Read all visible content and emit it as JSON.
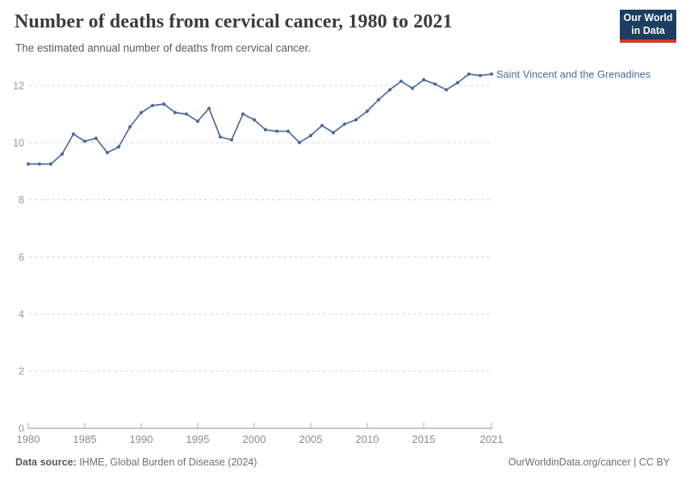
{
  "header": {
    "title": "Number of deaths from cervical cancer, 1980 to 2021",
    "subtitle": "The estimated annual number of deaths from cervical cancer.",
    "logo": {
      "line1": "Our World",
      "line2": "in Data"
    }
  },
  "colors": {
    "line": "#4C6A9C",
    "series_label": "#4C6A9C",
    "grid": "#DADADA",
    "axis": "#8F8F8F",
    "tick": "#ABABAB",
    "y_tick_label": "#999999",
    "x_tick_label": "#8C8C8C",
    "logo_bg": "#1D3D63",
    "logo_red": "#D43A32"
  },
  "chart_data": {
    "type": "line",
    "title": "Number of deaths from cervical cancer, 1980 to 2021",
    "subtitle": "The estimated annual number of deaths from cervical cancer.",
    "xlabel": "",
    "ylabel": "",
    "xlim": [
      1980,
      2021
    ],
    "ylim": [
      0,
      12.7
    ],
    "x_ticks": [
      1980,
      1985,
      1990,
      1995,
      2000,
      2005,
      2010,
      2015,
      2021
    ],
    "y_ticks": [
      0,
      2,
      4,
      6,
      8,
      10,
      12
    ],
    "grid": "horizontal-dashed",
    "legend": "end-of-line-label",
    "series": [
      {
        "name": "Saint Vincent and the Grenadines",
        "color": "#4C6A9C",
        "x": [
          1980,
          1981,
          1982,
          1983,
          1984,
          1985,
          1986,
          1987,
          1988,
          1989,
          1990,
          1991,
          1992,
          1993,
          1994,
          1995,
          1996,
          1997,
          1998,
          1999,
          2000,
          2001,
          2002,
          2003,
          2004,
          2005,
          2006,
          2007,
          2008,
          2009,
          2010,
          2011,
          2012,
          2013,
          2014,
          2015,
          2016,
          2017,
          2018,
          2019,
          2020,
          2021
        ],
        "values": [
          9.25,
          9.25,
          9.25,
          9.6,
          10.3,
          10.05,
          10.15,
          9.65,
          9.85,
          10.55,
          11.05,
          11.3,
          11.35,
          11.05,
          11.0,
          10.75,
          11.2,
          10.2,
          10.1,
          11.0,
          10.8,
          10.45,
          10.4,
          10.4,
          10.0,
          10.25,
          10.6,
          10.35,
          10.65,
          10.8,
          11.1,
          11.5,
          11.85,
          12.15,
          11.9,
          12.2,
          12.05,
          11.85,
          12.1,
          12.4,
          12.35,
          12.4
        ]
      }
    ]
  },
  "footer": {
    "source_label": "Data source:",
    "source_text": " IHME, Global Burden of Disease (2024)",
    "right_text": "OurWorldinData.org/cancer | CC BY"
  }
}
